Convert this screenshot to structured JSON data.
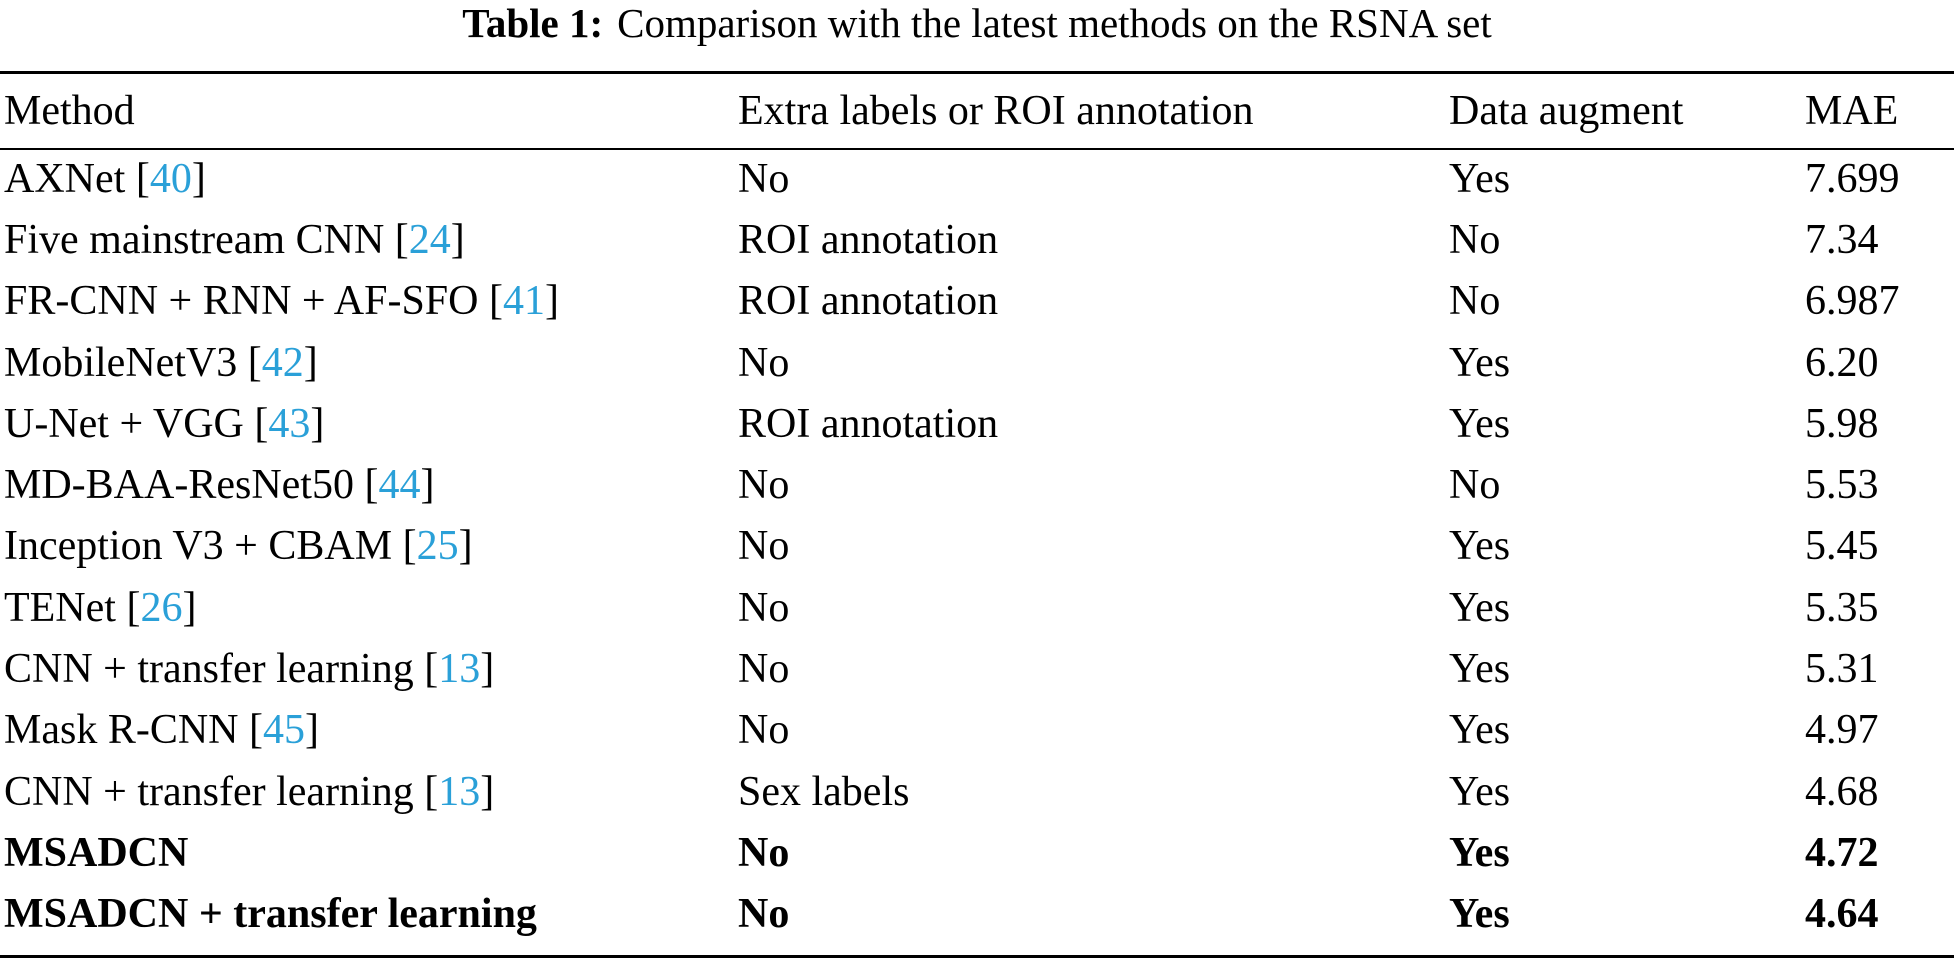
{
  "caption": {
    "label": "Table 1:",
    "text": "Comparison with the latest methods on the RSNA set"
  },
  "colors": {
    "citation": "#2aa0d8",
    "text": "#000000"
  },
  "table": {
    "headers": [
      "Method",
      "Extra labels or ROI annotation",
      "Data augment",
      "MAE"
    ],
    "rows": [
      {
        "method": "AXNet",
        "ref": "40",
        "extra": "No",
        "augment": "Yes",
        "mae": "7.699",
        "bold": false
      },
      {
        "method": "Five mainstream CNN",
        "ref": "24",
        "extra": "ROI annotation",
        "augment": "No",
        "mae": "7.34",
        "bold": false
      },
      {
        "method": "FR-CNN + RNN + AF-SFO",
        "ref": "41",
        "extra": "ROI annotation",
        "augment": "No",
        "mae": "6.987",
        "bold": false
      },
      {
        "method": "MobileNetV3",
        "ref": "42",
        "extra": "No",
        "augment": "Yes",
        "mae": "6.20",
        "bold": false
      },
      {
        "method": "U-Net + VGG",
        "ref": "43",
        "extra": "ROI annotation",
        "augment": "Yes",
        "mae": "5.98",
        "bold": false
      },
      {
        "method": "MD-BAA-ResNet50",
        "ref": "44",
        "extra": "No",
        "augment": "No",
        "mae": "5.53",
        "bold": false
      },
      {
        "method": "Inception V3 + CBAM",
        "ref": "25",
        "extra": "No",
        "augment": "Yes",
        "mae": "5.45",
        "bold": false
      },
      {
        "method": "TENet",
        "ref": "26",
        "extra": "No",
        "augment": "Yes",
        "mae": "5.35",
        "bold": false
      },
      {
        "method": "CNN + transfer learning",
        "ref": "13",
        "extra": "No",
        "augment": "Yes",
        "mae": "5.31",
        "bold": false
      },
      {
        "method": "Mask R-CNN",
        "ref": "45",
        "extra": "No",
        "augment": "Yes",
        "mae": "4.97",
        "bold": false
      },
      {
        "method": "CNN + transfer learning",
        "ref": "13",
        "extra": "Sex labels",
        "augment": "Yes",
        "mae": "4.68",
        "bold": false
      },
      {
        "method": "MSADCN",
        "ref": "",
        "extra": "No",
        "augment": "Yes",
        "mae": "4.72",
        "bold": true
      },
      {
        "method": "MSADCN + transfer learning",
        "ref": "",
        "extra": "No",
        "augment": "Yes",
        "mae": "4.64",
        "bold": true
      }
    ]
  }
}
